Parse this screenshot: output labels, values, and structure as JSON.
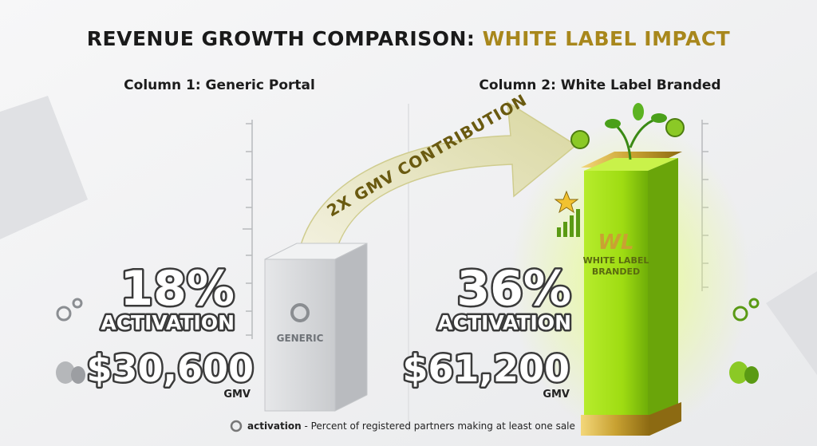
{
  "header": {
    "title_prefix": "REVENUE GROWTH COMPARISON: ",
    "title_highlight": "WHITE LABEL IMPACT"
  },
  "columns": [
    {
      "heading": "Column 1: Generic Portal",
      "percent": "18%",
      "metric": "ACTIVATION",
      "gmv": "$30,600",
      "gmv_label": "GMV",
      "pillar_label": [
        "GENERIC"
      ]
    },
    {
      "heading": "Column 2: White Label Branded",
      "percent": "36%",
      "metric": "ACTIVATION",
      "gmv": "$61,200",
      "gmv_label": "GMV",
      "pillar_label": [
        "WHITE LABEL",
        "BRANDED"
      ]
    }
  ],
  "arrow_label": "2X GMV CONTRIBUTION",
  "footnote": {
    "term": "activation",
    "definition": " - Percent of registered partners making at least one sale"
  }
}
